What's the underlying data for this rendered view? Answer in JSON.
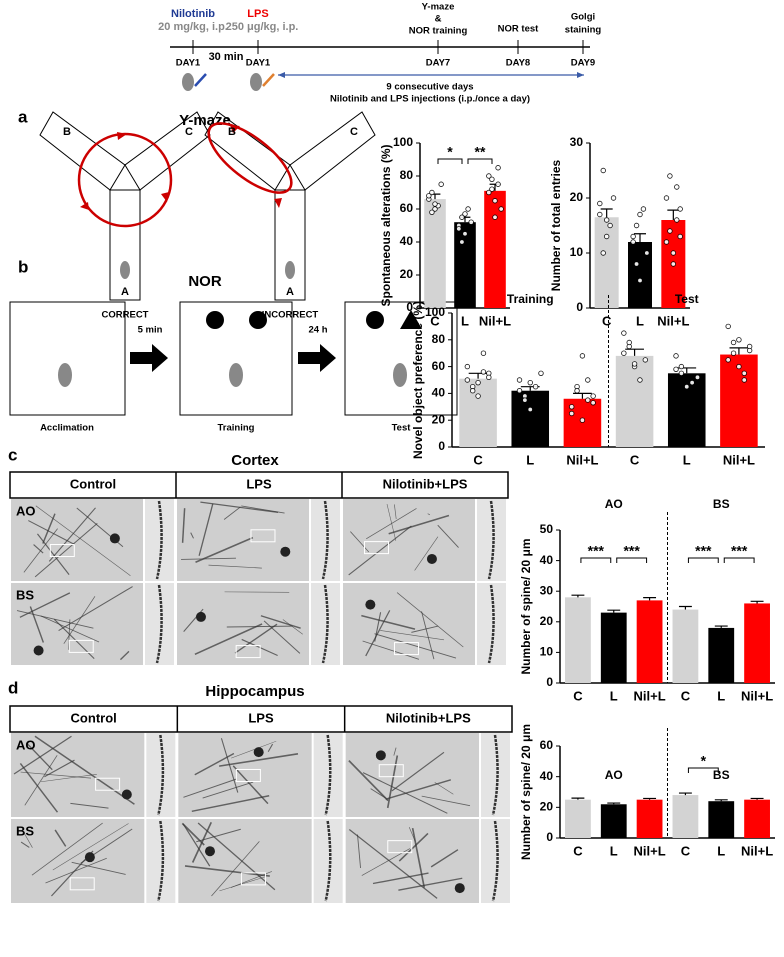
{
  "timeline": {
    "nilotinib": "Nilotinib",
    "nilotinib_dose": "20 mg/kg, i.p.",
    "interval": "30 min",
    "lps": "LPS",
    "lps_dose": "250 μg/kg, i.p.",
    "ymaze": [
      "Y-maze",
      "&",
      "NOR training"
    ],
    "nor_test": "NOR test",
    "golgi": [
      "Golgi",
      "staining"
    ],
    "days": [
      "DAY1",
      "DAY1",
      "DAY7",
      "DAY8",
      "DAY9"
    ],
    "note": [
      "9 consecutive days",
      "Nilotinib  and LPS injections (i.p./once a day)"
    ]
  },
  "panels": {
    "a": {
      "label": "a",
      "title": "Y-maze",
      "arms": [
        "B",
        "C",
        "A"
      ],
      "correct": "CORRECT",
      "incorrect": "INCORRECT"
    },
    "b": {
      "label": "b",
      "title": "NOR",
      "steps": [
        "5 min",
        "24 h"
      ],
      "boxes": [
        "Acclimation",
        "Training",
        "Test"
      ]
    },
    "c": {
      "label": "c",
      "title": "Cortex",
      "columns": [
        "Control",
        "LPS",
        "Nilotinib+LPS"
      ],
      "rows": [
        "AO",
        "BS"
      ]
    },
    "d": {
      "label": "d",
      "title": "Hippocampus",
      "columns": [
        "Control",
        "LPS",
        "Nilotinib+LPS"
      ],
      "rows": [
        "AO",
        "BS"
      ]
    }
  },
  "chart_data": [
    {
      "type": "bar",
      "ylabel": "Spontaneous alterations (%)",
      "ylim": [
        0,
        100
      ],
      "yticks": [
        0,
        20,
        40,
        60,
        80,
        100
      ],
      "colors": [
        "#d3d3d3",
        "#000000",
        "#ff0000"
      ],
      "groups": [
        {
          "categories": [
            "C",
            "L",
            "Nil+L"
          ],
          "values": [
            66,
            52,
            71
          ],
          "errors": [
            3,
            3,
            4
          ],
          "points": [
            [
              66,
              70,
              60,
              62,
              75,
              68,
              58,
              63
            ],
            [
              50,
              55,
              45,
              60,
              52,
              48,
              40,
              57
            ],
            [
              80,
              72,
              65,
              85,
              60,
              70,
              78,
              55,
              75
            ]
          ]
        }
      ],
      "significance": [
        {
          "group": 0,
          "from": 0,
          "to": 1,
          "label": "*"
        },
        {
          "group": 0,
          "from": 1,
          "to": 2,
          "label": "**"
        }
      ]
    },
    {
      "type": "bar",
      "ylabel": "Number of total entries",
      "ylim": [
        0,
        30
      ],
      "yticks": [
        0,
        10,
        20,
        30
      ],
      "colors": [
        "#d3d3d3",
        "#000000",
        "#ff0000"
      ],
      "groups": [
        {
          "categories": [
            "C",
            "L",
            "Nil+L"
          ],
          "values": [
            16.5,
            12,
            16
          ],
          "errors": [
            1.5,
            1.5,
            1.8
          ],
          "points": [
            [
              17,
              25,
              13,
              15,
              20,
              19,
              10,
              16
            ],
            [
              12,
              15,
              5,
              18,
              10,
              13,
              8,
              17
            ],
            [
              20,
              14,
              8,
              22,
              18,
              12,
              24,
              10,
              16,
              13
            ]
          ]
        }
      ]
    },
    {
      "type": "bar",
      "ylabel": "Novel object preference (%)",
      "ylim": [
        0,
        100
      ],
      "yticks": [
        0,
        20,
        40,
        60,
        80,
        100
      ],
      "colors": [
        "#d3d3d3",
        "#000000",
        "#ff0000"
      ],
      "groups": [
        {
          "title": "Training",
          "categories": [
            "C",
            "L",
            "Nil+L"
          ],
          "values": [
            51,
            42,
            36
          ],
          "errors": [
            4,
            3,
            4
          ],
          "points": [
            [
              60,
              45,
              38,
              70,
              55,
              50,
              42,
              48,
              56,
              52
            ],
            [
              50,
              38,
              28,
              45,
              55,
              42,
              35,
              48
            ],
            [
              30,
              45,
              20,
              50,
              38,
              25,
              42,
              68,
              35,
              33
            ]
          ]
        },
        {
          "title": "Test",
          "categories": [
            "C",
            "L",
            "Nil+L"
          ],
          "values": [
            68,
            55,
            69
          ],
          "errors": [
            5,
            4,
            5
          ],
          "points": [
            [
              85,
              75,
              60,
              50,
              65,
              70,
              78,
              62
            ],
            [
              68,
              60,
              45,
              48,
              52,
              58,
              55
            ],
            [
              90,
              78,
              60,
              55,
              75,
              65,
              70,
              80,
              50,
              72
            ]
          ]
        }
      ]
    },
    {
      "type": "bar",
      "ylabel": "Number of spine/ 20 μm",
      "ylim": [
        0,
        50
      ],
      "yticks": [
        0,
        10,
        20,
        30,
        40,
        50
      ],
      "colors": [
        "#d3d3d3",
        "#000000",
        "#ff0000"
      ],
      "groups": [
        {
          "title": "AO",
          "categories": [
            "C",
            "L",
            "Nil+L"
          ],
          "values": [
            28,
            23,
            27
          ],
          "errors": [
            0.7,
            0.8,
            0.9
          ]
        },
        {
          "title": "BS",
          "categories": [
            "C",
            "L",
            "Nil+L"
          ],
          "values": [
            24,
            18,
            26
          ],
          "errors": [
            1,
            0.6,
            0.7
          ]
        }
      ],
      "significance": [
        {
          "group": 0,
          "from": 0,
          "to": 1,
          "label": "***"
        },
        {
          "group": 0,
          "from": 1,
          "to": 2,
          "label": "***"
        },
        {
          "group": 1,
          "from": 0,
          "to": 1,
          "label": "***"
        },
        {
          "group": 1,
          "from": 1,
          "to": 2,
          "label": "***"
        }
      ]
    },
    {
      "type": "bar",
      "ylabel": "Number of spine/ 20 μm",
      "ylim": [
        0,
        60
      ],
      "yticks": [
        0,
        20,
        40,
        60
      ],
      "colors": [
        "#d3d3d3",
        "#000000",
        "#ff0000"
      ],
      "groups": [
        {
          "title": "AO",
          "categories": [
            "C",
            "L",
            "Nil+L"
          ],
          "values": [
            25,
            22,
            25
          ],
          "errors": [
            1,
            0.8,
            0.8
          ]
        },
        {
          "title": "BS",
          "categories": [
            "C",
            "L",
            "Nil+L"
          ],
          "values": [
            28,
            24,
            25
          ],
          "errors": [
            1.3,
            0.9,
            0.8
          ]
        }
      ],
      "significance": [
        {
          "group": 1,
          "from": 0,
          "to": 1,
          "label": "*"
        }
      ]
    }
  ]
}
